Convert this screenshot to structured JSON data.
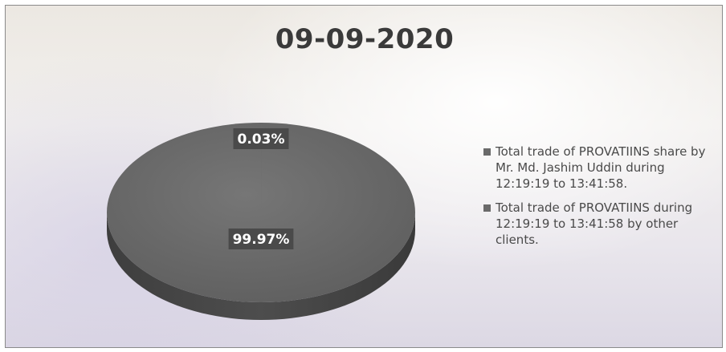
{
  "chart_data": {
    "type": "pie",
    "title": "09-09-2020",
    "slices": [
      {
        "label": "Total trade of PROVATIINS share by Mr. Md. Jashim Uddin during 12:19:19 to 13:41:58.",
        "value": 0.03,
        "value_label": "0.03%"
      },
      {
        "label": "Total trade of PROVATIINS during 12:19:19 to 13:41:58 by other clients.",
        "value": 99.97,
        "value_label": "99.97%"
      }
    ],
    "legend_position": "right",
    "style": "3d",
    "colors": {
      "slice_top": "#6b6b6b",
      "slice_side": "#474747",
      "label_box": "#4a4a4a",
      "legend_swatch": "#6a6a6a"
    }
  }
}
